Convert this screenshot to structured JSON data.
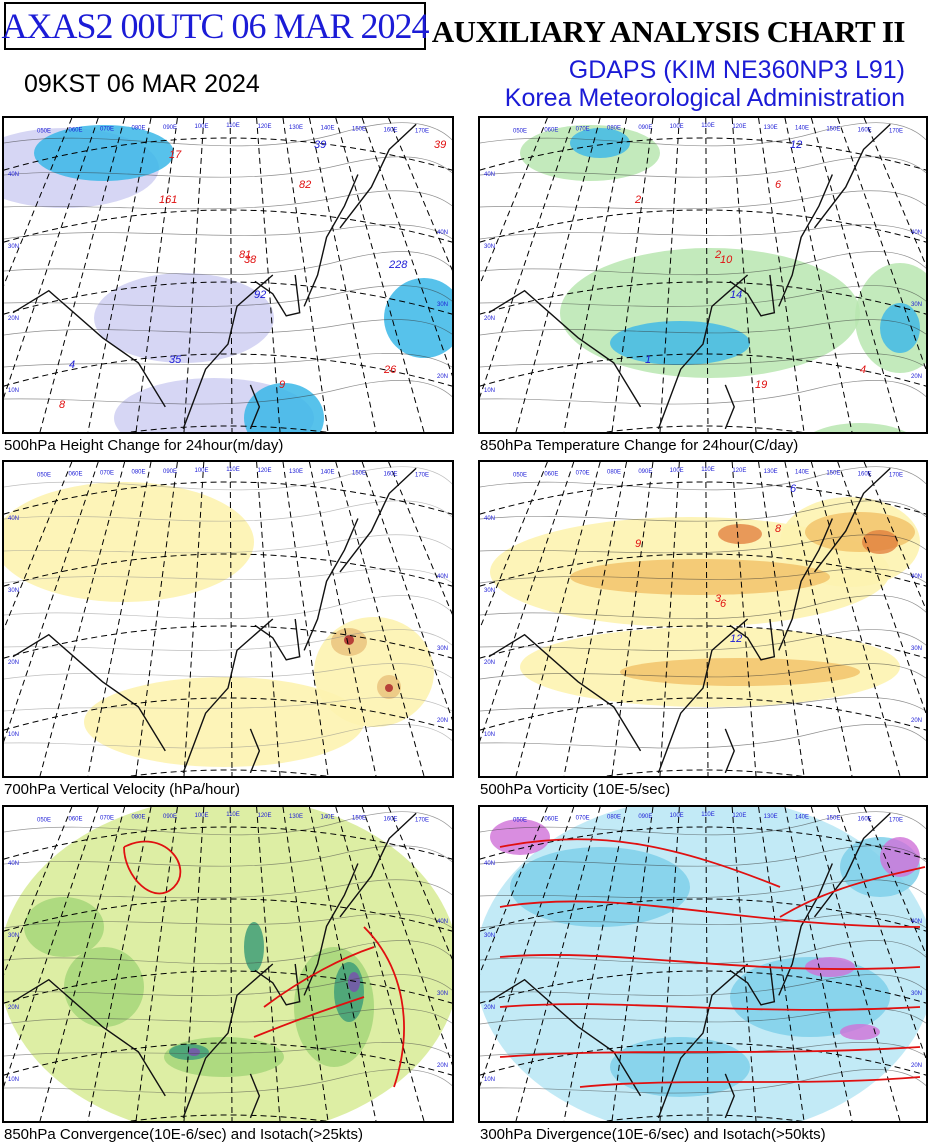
{
  "header": {
    "product_code": "AXAS2  00UTC 06 MAR 2024",
    "valid_time": "09KST 06 MAR 2024",
    "chart_title": "AUXILIARY ANALYSIS CHART II",
    "model": "GDAPS (KIM NE360NP3 L91)",
    "agency": "Korea Meteorological Administration"
  },
  "colors": {
    "title_blue": "#1b1bd6",
    "contour_red": "#e01010",
    "shade_blue": "#3ab7e8",
    "shade_green": "#6cc46c",
    "shade_yellow": "#fdf3b0",
    "shade_purple": "#c8c8f0"
  },
  "panels": [
    {
      "caption": "500hPa Height Change for 24hour(m/day)",
      "longitude_labels": [
        "050E",
        "060E",
        "070E",
        "080E",
        "090E",
        "100E",
        "110E",
        "120E",
        "130E",
        "140E",
        "150E",
        "160E",
        "170E"
      ],
      "latitude_labels": [
        "40N",
        "30N",
        "20N",
        "10N"
      ],
      "value_labels": [
        "39",
        "82",
        "161",
        "92",
        "38",
        "81",
        "35",
        "26",
        "9",
        "4",
        "8",
        "17",
        "228",
        "39"
      ]
    },
    {
      "caption": "850hPa Temperature Change for 24hour(C/day)",
      "longitude_labels": [
        "050E",
        "060E",
        "070E",
        "080E",
        "090E",
        "100E",
        "110E",
        "120E",
        "130E",
        "140E",
        "150E",
        "160E",
        "170E"
      ],
      "latitude_labels": [
        "40N",
        "30N",
        "20N",
        "10N"
      ],
      "value_labels": [
        "12",
        "6",
        "2",
        "14",
        "10",
        "2",
        "1",
        "4",
        "19"
      ]
    },
    {
      "caption": "700hPa Vertical Velocity (hPa/hour)",
      "longitude_labels": [
        "050E",
        "060E",
        "070E",
        "080E",
        "090E",
        "100E",
        "110E",
        "120E",
        "130E",
        "140E",
        "150E",
        "160E",
        "170E"
      ],
      "latitude_labels": [
        "40N",
        "30N",
        "20N",
        "10N"
      ],
      "value_labels": []
    },
    {
      "caption": "500hPa Vorticity (10E-5/sec)",
      "longitude_labels": [
        "050E",
        "060E",
        "070E",
        "080E",
        "090E",
        "100E",
        "110E",
        "120E",
        "130E",
        "140E",
        "150E",
        "160E",
        "170E"
      ],
      "latitude_labels": [
        "40N",
        "30N",
        "20N",
        "10N"
      ],
      "value_labels": [
        "6",
        "8",
        "9",
        "12",
        "6",
        "3"
      ]
    },
    {
      "caption": "850hPa Convergence(10E-6/sec) and Isotach(>25kts)",
      "longitude_labels": [
        "050E",
        "060E",
        "070E",
        "080E",
        "090E",
        "100E",
        "110E",
        "120E",
        "130E",
        "140E",
        "150E",
        "160E",
        "170E"
      ],
      "latitude_labels": [
        "40N",
        "30N",
        "20N",
        "10N"
      ],
      "value_labels": []
    },
    {
      "caption": "300hPa Divergence(10E-6/sec) and Isotach(>50kts)",
      "longitude_labels": [
        "050E",
        "060E",
        "070E",
        "080E",
        "090E",
        "100E",
        "110E",
        "120E",
        "130E",
        "140E",
        "150E",
        "160E",
        "170E"
      ],
      "latitude_labels": [
        "40N",
        "30N",
        "20N",
        "10N"
      ],
      "value_labels": []
    }
  ]
}
